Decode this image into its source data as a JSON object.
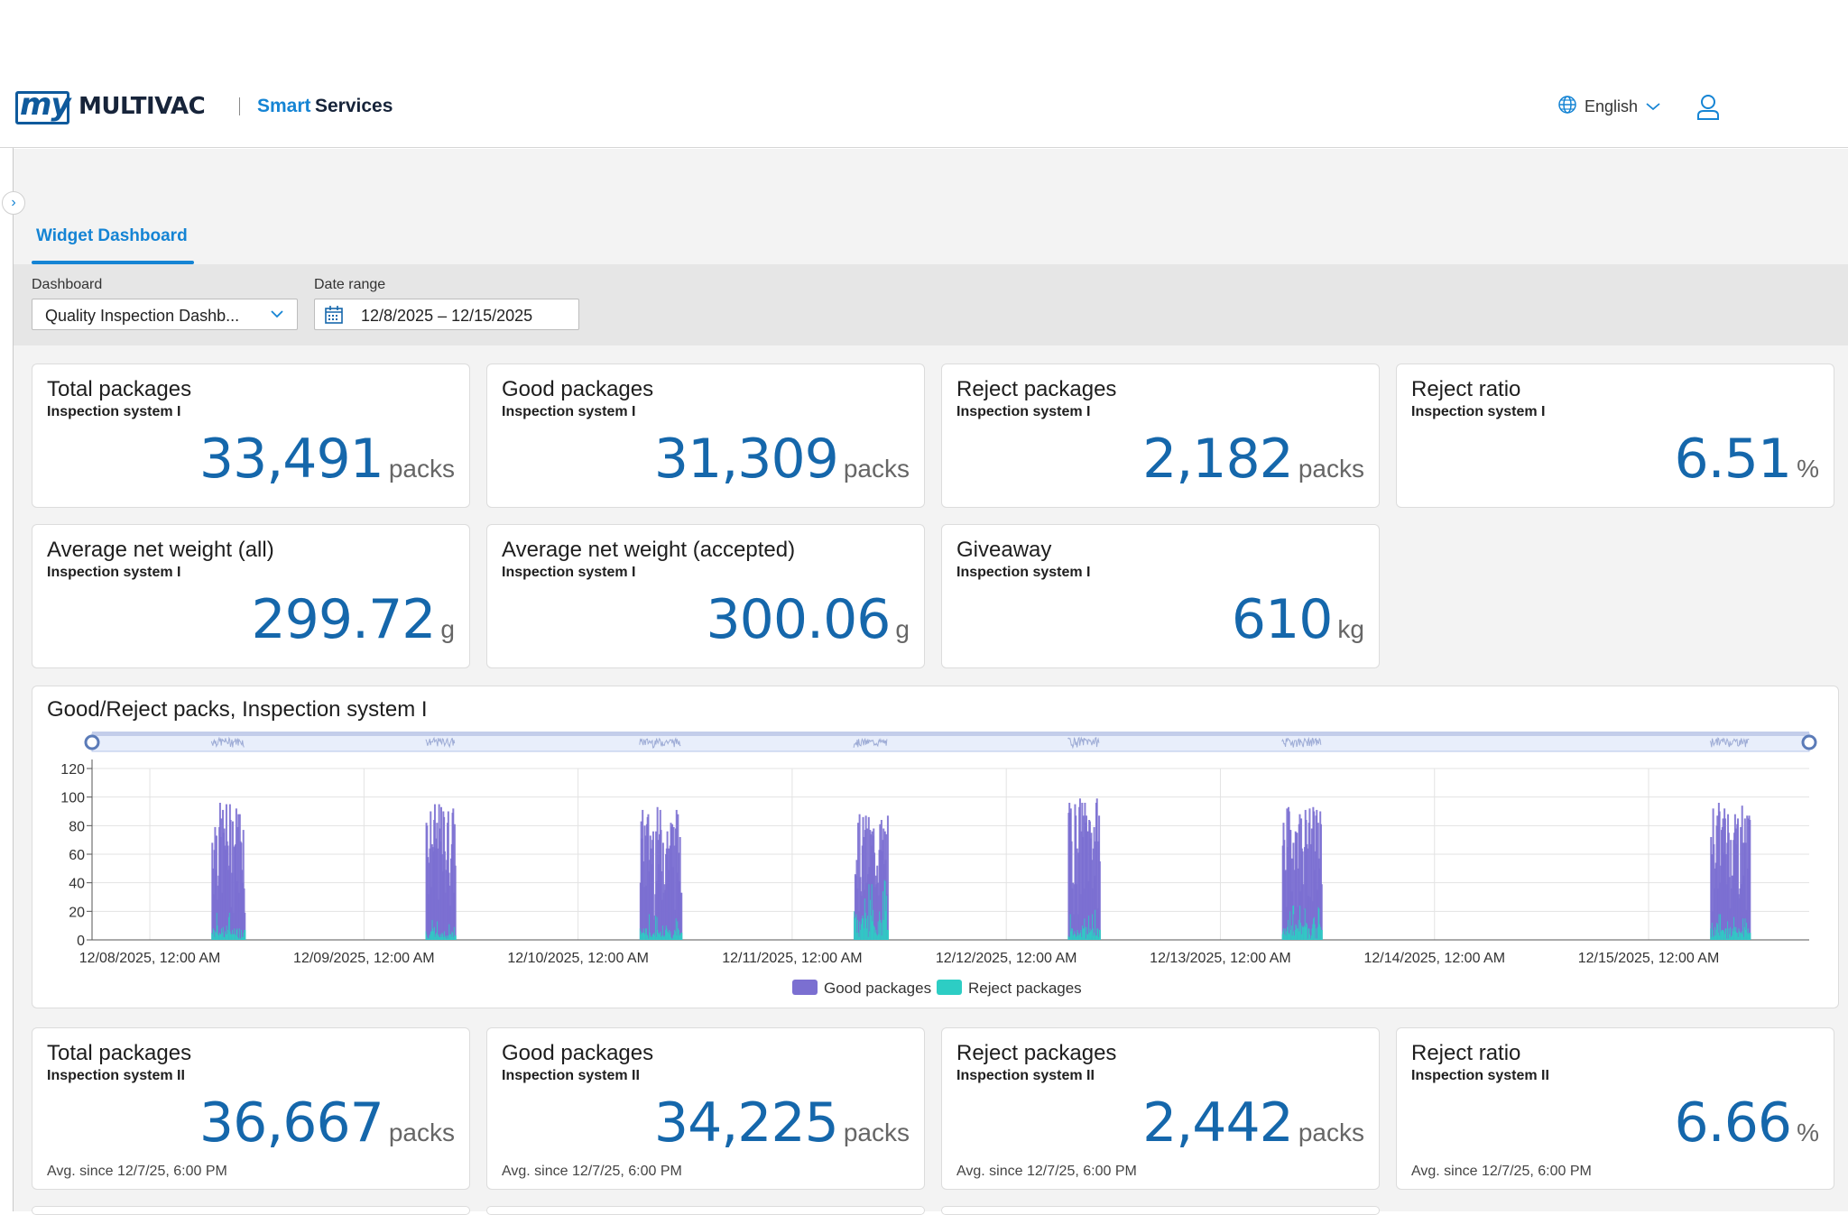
{
  "header": {
    "logo_my": "my",
    "logo_brand": "MULTIVAC",
    "product_smart": "Smart",
    "product_services": "Services",
    "language": "English",
    "icons": {
      "language": "globe-icon",
      "user": "user-icon"
    }
  },
  "tabs": [
    {
      "label": "Widget Dashboard",
      "active": true
    }
  ],
  "filters": {
    "dashboard_label": "Dashboard",
    "dashboard_value": "Quality Inspection Dashb...",
    "date_range_label": "Date range",
    "date_range_value": "12/8/2025 – 12/15/2025"
  },
  "cards_row1": [
    {
      "title": "Total packages",
      "subtitle": "Inspection system I",
      "value": "33,491",
      "unit": "packs"
    },
    {
      "title": "Good packages",
      "subtitle": "Inspection system I",
      "value": "31,309",
      "unit": "packs"
    },
    {
      "title": "Reject packages",
      "subtitle": "Inspection system I",
      "value": "2,182",
      "unit": "packs"
    },
    {
      "title": "Reject ratio",
      "subtitle": "Inspection system I",
      "value": "6.51",
      "unit": "%"
    }
  ],
  "cards_row2": [
    {
      "title": "Average net weight (all)",
      "subtitle": "Inspection system I",
      "value": "299.72",
      "unit": "g"
    },
    {
      "title": "Average net weight (accepted)",
      "subtitle": "Inspection system I",
      "value": "300.06",
      "unit": "g"
    },
    {
      "title": "Giveaway",
      "subtitle": "Inspection system I",
      "value": "610",
      "unit": "kg"
    }
  ],
  "cards_row3": [
    {
      "title": "Total packages",
      "subtitle": "Inspection system II",
      "value": "36,667",
      "unit": "packs",
      "footer": "Avg. since 12/7/25, 6:00 PM"
    },
    {
      "title": "Good packages",
      "subtitle": "Inspection system II",
      "value": "34,225",
      "unit": "packs",
      "footer": "Avg. since 12/7/25, 6:00 PM"
    },
    {
      "title": "Reject packages",
      "subtitle": "Inspection system II",
      "value": "2,442",
      "unit": "packs",
      "footer": "Avg. since 12/7/25, 6:00 PM"
    },
    {
      "title": "Reject ratio",
      "subtitle": "Inspection system II",
      "value": "6.66",
      "unit": "%",
      "footer": "Avg. since 12/7/25, 6:00 PM"
    }
  ],
  "chart_data": {
    "type": "bar",
    "title": "Good/Reject packs, Inspection system I",
    "stacked": true,
    "ylim": [
      0,
      120
    ],
    "yticks": [
      0,
      20,
      40,
      60,
      80,
      100,
      120
    ],
    "x_tick_labels": [
      "12/08/2025, 12:00 AM",
      "12/09/2025, 12:00 AM",
      "12/10/2025, 12:00 AM",
      "12/11/2025, 12:00 AM",
      "12/12/2025, 12:00 AM",
      "12/13/2025, 12:00 AM",
      "12/14/2025, 12:00 AM",
      "12/15/2025, 12:00 AM"
    ],
    "x_range_days": [
      -0.27,
      7.75
    ],
    "grid": true,
    "legend_position": "bottom",
    "data_zoom": true,
    "colors": {
      "good": "#7b6fd1",
      "reject": "#2dcdc4"
    },
    "series": [
      {
        "name": "Good packages",
        "color": "#7b6fd1"
      },
      {
        "name": "Reject packages",
        "color": "#2dcdc4"
      }
    ],
    "bursts": [
      {
        "day": 0,
        "start_hour": 6.9,
        "end_hour": 10.6,
        "peak_good": 97,
        "peak_reject": 20
      },
      {
        "day": 1,
        "start_hour": 6.9,
        "end_hour": 10.2,
        "peak_good": 95,
        "peak_reject": 14
      },
      {
        "day": 2,
        "start_hour": 6.9,
        "end_hour": 11.5,
        "peak_good": 93,
        "peak_reject": 18
      },
      {
        "day": 3,
        "start_hour": 6.9,
        "end_hour": 10.7,
        "peak_good": 88,
        "peak_reject": 46
      },
      {
        "day": 4,
        "start_hour": 6.9,
        "end_hour": 10.4,
        "peak_good": 100,
        "peak_reject": 22
      },
      {
        "day": 5,
        "start_hour": 6.9,
        "end_hour": 11.3,
        "peak_good": 94,
        "peak_reject": 26
      },
      {
        "day": 7,
        "start_hour": 6.9,
        "end_hour": 11.3,
        "peak_good": 97,
        "peak_reject": 20
      }
    ]
  }
}
